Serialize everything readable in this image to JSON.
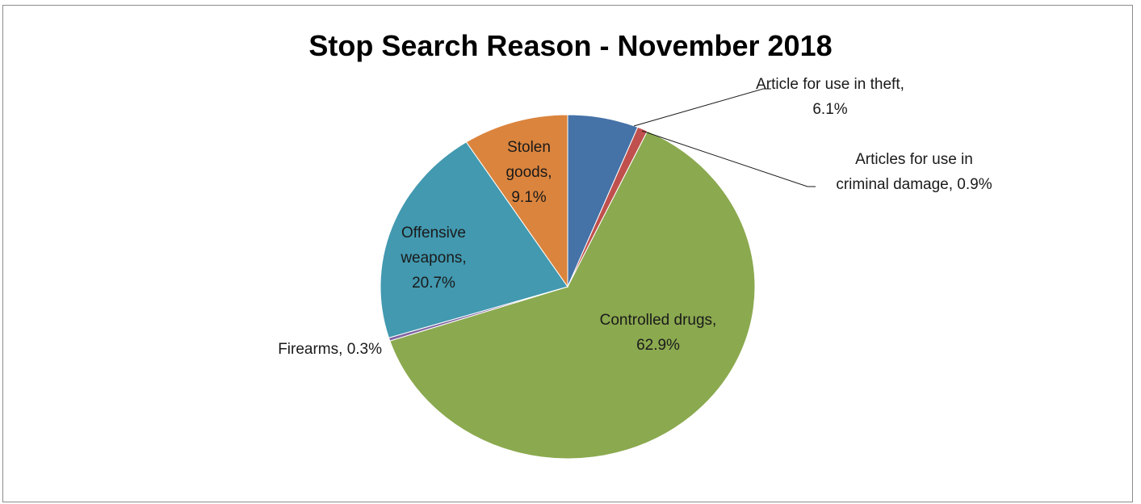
{
  "chart_data": {
    "type": "pie",
    "title": "Stop Search Reason - November 2018",
    "start_angle_deg": 0,
    "direction": "clockwise",
    "legend": "none",
    "slices": [
      {
        "label": "Article for use in theft",
        "value": 6.1,
        "value_label": "6.1%",
        "color": "#4572A7",
        "label_lines": [
          "Article for use in theft,",
          "6.1%"
        ],
        "label_mode": "outside-leader"
      },
      {
        "label": "Articles for use in criminal damage",
        "value": 0.9,
        "value_label": "0.9%",
        "color": "#C0504D",
        "label_lines": [
          "Articles for use in",
          "criminal damage, 0.9%"
        ],
        "label_mode": "outside-leader"
      },
      {
        "label": "Controlled drugs",
        "value": 62.9,
        "value_label": "62.9%",
        "color": "#8BA94F",
        "label_lines": [
          "Controlled drugs,",
          "62.9%"
        ],
        "label_mode": "inside"
      },
      {
        "label": "Firearms",
        "value": 0.3,
        "value_label": "0.3%",
        "color": "#8064A2",
        "label_lines": [
          "Firearms, 0.3%"
        ],
        "label_mode": "outside"
      },
      {
        "label": "Offensive weapons",
        "value": 20.7,
        "value_label": "20.7%",
        "color": "#4299B0",
        "label_lines": [
          "Offensive",
          "weapons,",
          "20.7%"
        ],
        "label_mode": "inside"
      },
      {
        "label": "Stolen goods",
        "value": 9.1,
        "value_label": "9.1%",
        "color": "#DB843D",
        "label_lines": [
          "Stolen",
          "goods,",
          "9.1%"
        ],
        "label_mode": "inside"
      }
    ]
  }
}
